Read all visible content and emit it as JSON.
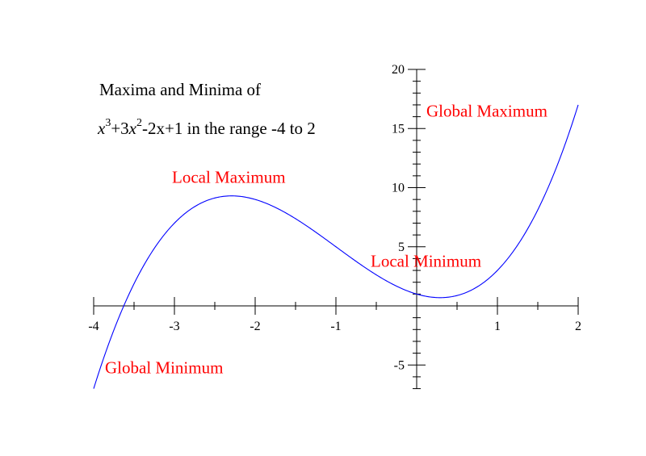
{
  "chart_data": {
    "type": "line",
    "title_line1": "Maxima and Minima of",
    "title_line2": {
      "x": "x",
      "exp3": "3",
      "plus3": "+3",
      "x2": "x",
      "exp2": "2",
      "rest": "-2x+1  in the range -4 to 2"
    },
    "function": {
      "coefficients": [
        1,
        3,
        -2,
        1
      ],
      "x_range": [
        -4,
        2
      ]
    },
    "xlim": [
      -4,
      2
    ],
    "ylim": [
      -7,
      20
    ],
    "x_ticks": [
      {
        "value": -4,
        "label": "-4"
      },
      {
        "value": -3,
        "label": "-3"
      },
      {
        "value": -2,
        "label": "-2"
      },
      {
        "value": -1,
        "label": "-1"
      },
      {
        "value": 1,
        "label": "1"
      },
      {
        "value": 2,
        "label": "2"
      }
    ],
    "x_minor_step": 0.5,
    "y_ticks": [
      {
        "value": -5,
        "label": "-5"
      },
      {
        "value": 5,
        "label": "5"
      },
      {
        "value": 10,
        "label": "10"
      },
      {
        "value": 15,
        "label": "15"
      },
      {
        "value": 20,
        "label": "20"
      }
    ],
    "y_minor_step": 1,
    "annotations": [
      {
        "text": "Global Maximum",
        "x": 0.12,
        "y": 16
      },
      {
        "text": "Local Maximum",
        "x": -3.03,
        "y": 10.4
      },
      {
        "text": "Local Minimum",
        "x": -0.57,
        "y": 3.3
      },
      {
        "text": "Global Minimum",
        "x": -3.86,
        "y": -5.7
      }
    ],
    "line_color": "#0000ff",
    "annotation_color": "#ff0000",
    "grid": false
  }
}
